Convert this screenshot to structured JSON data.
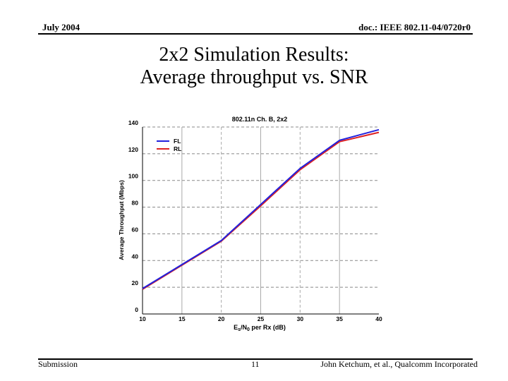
{
  "header": {
    "date": "July 2004",
    "doc_id": "doc.: IEEE 802.11-04/0720r0"
  },
  "slide": {
    "title_line1": "2x2 Simulation Results:",
    "title_line2": "Average throughput vs. SNR"
  },
  "footer": {
    "left": "Submission",
    "page": "11",
    "author": "John Ketchum, et al., Qualcomm Incorporated"
  },
  "chart_data": {
    "type": "line",
    "title": "802.11n Ch. B, 2x2",
    "xlabel_main": "E",
    "xlabel_sub1": "s",
    "xlabel_mid": "/N",
    "xlabel_sub2": "0",
    "xlabel_tail": " per Rx (dB)",
    "ylabel": "Average Throughput (Mbps)",
    "xlim": [
      10,
      40
    ],
    "ylim": [
      0,
      140
    ],
    "xticks": [
      10,
      15,
      20,
      25,
      30,
      35,
      40
    ],
    "yticks": [
      0,
      20,
      40,
      60,
      80,
      100,
      120,
      140
    ],
    "legend_position": "top-left",
    "grid": true,
    "series": [
      {
        "name": "FL",
        "color": "#2222dd",
        "x": [
          10,
          15,
          20,
          25,
          30,
          35,
          40
        ],
        "y": [
          19,
          37,
          55,
          82,
          109,
          130,
          138
        ]
      },
      {
        "name": "RL",
        "color": "#dd2222",
        "x": [
          10,
          15,
          20,
          25,
          30,
          35,
          40
        ],
        "y": [
          18.5,
          36.5,
          54.5,
          81,
          108,
          129,
          136
        ]
      }
    ]
  }
}
